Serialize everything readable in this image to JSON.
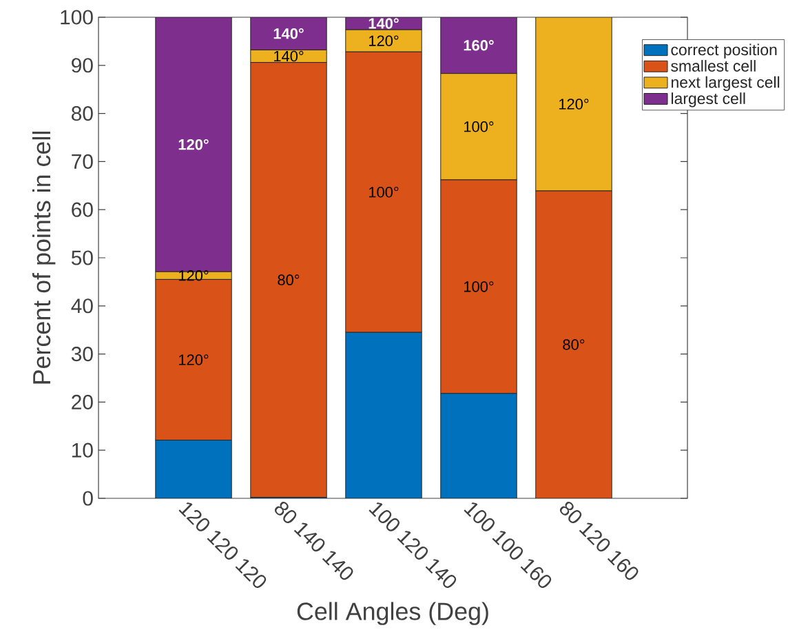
{
  "chart_data": {
    "type": "bar",
    "stacked": true,
    "xlabel": "Cell Angles (Deg)",
    "ylabel": "Percent of points in cell",
    "categories": [
      "120 120 120",
      "80 140 140",
      "100 120 140",
      "100 100 160",
      "80 120 160"
    ],
    "series": [
      {
        "name": "correct position",
        "color": "#0072bd",
        "values": [
          12.1,
          0.2,
          34.5,
          21.8,
          0
        ]
      },
      {
        "name": "smallest cell",
        "color": "#d95319",
        "values": [
          33.4,
          90.4,
          58.3,
          44.4,
          63.9
        ]
      },
      {
        "name": "next largest cell",
        "color": "#edb120",
        "values": [
          1.6,
          2.6,
          4.6,
          22.1,
          36.1
        ]
      },
      {
        "name": "largest cell",
        "color": "#7e2f8e",
        "values": [
          52.9,
          6.8,
          2.6,
          11.7,
          0
        ]
      }
    ],
    "ylim": [
      0,
      100
    ],
    "yticks": [
      0,
      10,
      20,
      30,
      40,
      50,
      60,
      70,
      80,
      90,
      100
    ],
    "legend": "top right",
    "annotations": [
      "120°",
      "120°",
      "120°",
      "80°",
      "140°",
      "140°",
      "100°",
      "120°",
      "140°",
      "100°",
      "100°",
      "160°",
      "80°",
      "120°"
    ]
  }
}
